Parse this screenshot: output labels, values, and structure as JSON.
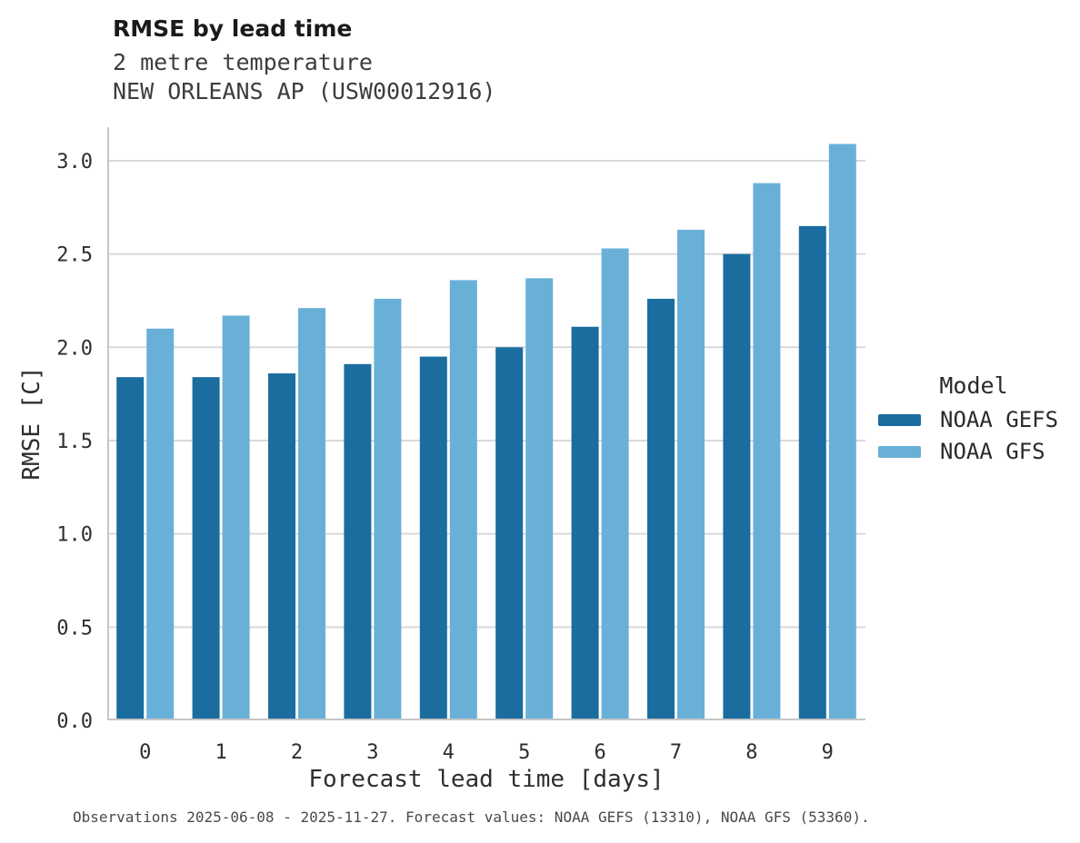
{
  "caption": "Observations 2025-06-08 - 2025-11-27. Forecast values: NOAA GEFS (13310), NOAA GFS (53360).",
  "colors": {
    "gefs_dark_blue": "#1a6d9e",
    "gfs_light_blue": "#69b0d8",
    "grid": "#d9d9d9",
    "axis": "#c6c6c6",
    "title_text": "#1a1a1a",
    "subtitle_text": "#3d3d3d",
    "tick_text": "#2e2e2e"
  },
  "legend": {
    "title": "Model"
  },
  "chart_data": {
    "type": "bar",
    "title": "RMSE by lead time",
    "subtitle": [
      "2 metre temperature",
      "NEW ORLEANS AP (USW00012916)"
    ],
    "categories": [
      0,
      1,
      2,
      3,
      4,
      5,
      6,
      7,
      8,
      9
    ],
    "series": [
      {
        "name": "NOAA GEFS",
        "color": "#1a6d9e",
        "values": [
          1.84,
          1.84,
          1.86,
          1.91,
          1.95,
          2.0,
          2.11,
          2.26,
          2.5,
          2.65
        ]
      },
      {
        "name": "NOAA GFS",
        "color": "#69b0d8",
        "values": [
          2.1,
          2.17,
          2.21,
          2.26,
          2.36,
          2.37,
          2.53,
          2.63,
          2.88,
          3.09
        ]
      }
    ],
    "xlabel": "Forecast lead time [days]",
    "ylabel": "RMSE [C]",
    "ylim": [
      0,
      3.18
    ],
    "yticks": [
      0.0,
      0.5,
      1.0,
      1.5,
      2.0,
      2.5,
      3.0
    ],
    "grid": true,
    "legend_title": "Model",
    "legend_position": "right-center"
  }
}
